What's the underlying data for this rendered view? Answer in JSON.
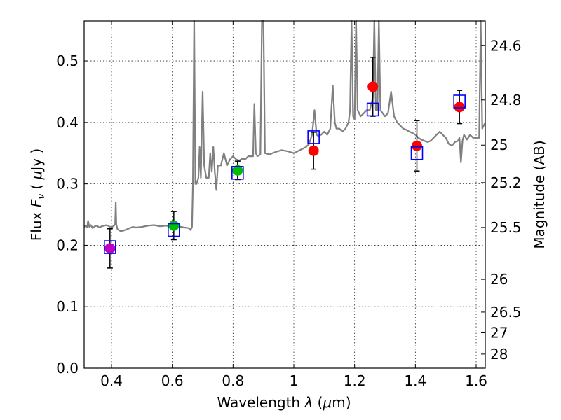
{
  "chart_data": {
    "type": "scatter",
    "title": "",
    "xlabel": {
      "prefix": "Wavelength ",
      "symbol": "λ",
      "open": " (",
      "mu": "μ",
      "unit": "m)"
    },
    "ylabel": {
      "prefix": "Flux ",
      "symbol": "F",
      "sub": "ν",
      "open": " ( ",
      "mu": "μ",
      "unit": "Jy )"
    },
    "y2label": "Magnitude (AB)",
    "xlim": [
      0.31,
      1.63
    ],
    "ylim": [
      0.0,
      0.565
    ],
    "grid": true,
    "x_ticks": [
      0.4,
      0.6,
      0.8,
      1.0,
      1.2,
      1.4,
      1.6
    ],
    "x_tick_labels": [
      "0.4",
      "0.6",
      "0.8",
      "1",
      "1.2",
      "1.4",
      "1.6"
    ],
    "y_ticks": [
      0.0,
      0.1,
      0.2,
      0.3,
      0.4,
      0.5
    ],
    "y_tick_labels": [
      "0.0",
      "0.1",
      "0.2",
      "0.3",
      "0.4",
      "0.5"
    ],
    "y2_ticks": [
      24.6,
      24.8,
      25.0,
      25.2,
      25.5,
      26.0,
      26.5,
      27.0,
      28.0
    ],
    "y2_tick_labels": [
      "24.6",
      "24.8",
      "25",
      "25.2",
      "25.5",
      "26",
      "26.5",
      "27",
      "28"
    ],
    "model_spectrum": {
      "name": "model SED",
      "color": "#808080",
      "points": [
        [
          0.31,
          0.23
        ],
        [
          0.315,
          0.232
        ],
        [
          0.32,
          0.229
        ],
        [
          0.323,
          0.24
        ],
        [
          0.327,
          0.23
        ],
        [
          0.332,
          0.233
        ],
        [
          0.338,
          0.228
        ],
        [
          0.345,
          0.231
        ],
        [
          0.352,
          0.232
        ],
        [
          0.36,
          0.229
        ],
        [
          0.368,
          0.231
        ],
        [
          0.376,
          0.232
        ],
        [
          0.384,
          0.233
        ],
        [
          0.392,
          0.231
        ],
        [
          0.4,
          0.229
        ],
        [
          0.408,
          0.232
        ],
        [
          0.412,
          0.234
        ],
        [
          0.414,
          0.27
        ],
        [
          0.416,
          0.234
        ],
        [
          0.42,
          0.226
        ],
        [
          0.43,
          0.223
        ],
        [
          0.44,
          0.224
        ],
        [
          0.45,
          0.226
        ],
        [
          0.46,
          0.228
        ],
        [
          0.47,
          0.23
        ],
        [
          0.48,
          0.229
        ],
        [
          0.5,
          0.23
        ],
        [
          0.52,
          0.232
        ],
        [
          0.54,
          0.233
        ],
        [
          0.56,
          0.231
        ],
        [
          0.58,
          0.232
        ],
        [
          0.6,
          0.23
        ],
        [
          0.62,
          0.231
        ],
        [
          0.64,
          0.229
        ],
        [
          0.655,
          0.228
        ],
        [
          0.66,
          0.225
        ],
        [
          0.665,
          0.23
        ],
        [
          0.668,
          0.3
        ],
        [
          0.672,
          0.565
        ],
        [
          0.676,
          0.3
        ],
        [
          0.68,
          0.3
        ],
        [
          0.686,
          0.31
        ],
        [
          0.69,
          0.36
        ],
        [
          0.694,
          0.31
        ],
        [
          0.7,
          0.45
        ],
        [
          0.705,
          0.33
        ],
        [
          0.712,
          0.31
        ],
        [
          0.72,
          0.31
        ],
        [
          0.725,
          0.35
        ],
        [
          0.73,
          0.32
        ],
        [
          0.735,
          0.36
        ],
        [
          0.74,
          0.32
        ],
        [
          0.745,
          0.29
        ],
        [
          0.75,
          0.33
        ],
        [
          0.76,
          0.33
        ],
        [
          0.77,
          0.35
        ],
        [
          0.78,
          0.33
        ],
        [
          0.79,
          0.34
        ],
        [
          0.8,
          0.345
        ],
        [
          0.81,
          0.34
        ],
        [
          0.82,
          0.338
        ],
        [
          0.83,
          0.341
        ],
        [
          0.84,
          0.34
        ],
        [
          0.85,
          0.345
        ],
        [
          0.86,
          0.345
        ],
        [
          0.866,
          0.345
        ],
        [
          0.87,
          0.43
        ],
        [
          0.875,
          0.35
        ],
        [
          0.88,
          0.345
        ],
        [
          0.89,
          0.348
        ],
        [
          0.895,
          0.565
        ],
        [
          0.9,
          0.565
        ],
        [
          0.905,
          0.35
        ],
        [
          0.92,
          0.348
        ],
        [
          0.94,
          0.352
        ],
        [
          0.96,
          0.355
        ],
        [
          0.98,
          0.353
        ],
        [
          1.0,
          0.35
        ],
        [
          1.02,
          0.355
        ],
        [
          1.04,
          0.36
        ],
        [
          1.05,
          0.365
        ],
        [
          1.06,
          0.38
        ],
        [
          1.068,
          0.42
        ],
        [
          1.075,
          0.38
        ],
        [
          1.08,
          0.378
        ],
        [
          1.09,
          0.38
        ],
        [
          1.1,
          0.385
        ],
        [
          1.11,
          0.38
        ],
        [
          1.12,
          0.39
        ],
        [
          1.128,
          0.46
        ],
        [
          1.135,
          0.4
        ],
        [
          1.14,
          0.39
        ],
        [
          1.15,
          0.39
        ],
        [
          1.16,
          0.385
        ],
        [
          1.17,
          0.39
        ],
        [
          1.18,
          0.4
        ],
        [
          1.185,
          0.42
        ],
        [
          1.19,
          0.565
        ],
        [
          1.195,
          0.41
        ],
        [
          1.2,
          0.405
        ],
        [
          1.205,
          0.565
        ],
        [
          1.21,
          0.42
        ],
        [
          1.22,
          0.41
        ],
        [
          1.23,
          0.415
        ],
        [
          1.24,
          0.42
        ],
        [
          1.25,
          0.42
        ],
        [
          1.26,
          0.44
        ],
        [
          1.265,
          0.565
        ],
        [
          1.27,
          0.42
        ],
        [
          1.275,
          0.42
        ],
        [
          1.28,
          0.565
        ],
        [
          1.285,
          0.42
        ],
        [
          1.3,
          0.41
        ],
        [
          1.31,
          0.415
        ],
        [
          1.32,
          0.45
        ],
        [
          1.33,
          0.41
        ],
        [
          1.34,
          0.4
        ],
        [
          1.35,
          0.395
        ],
        [
          1.36,
          0.39
        ],
        [
          1.37,
          0.388
        ],
        [
          1.38,
          0.385
        ],
        [
          1.39,
          0.383
        ],
        [
          1.4,
          0.38
        ],
        [
          1.41,
          0.375
        ],
        [
          1.42,
          0.372
        ],
        [
          1.43,
          0.37
        ],
        [
          1.44,
          0.368
        ],
        [
          1.45,
          0.37
        ],
        [
          1.46,
          0.375
        ],
        [
          1.47,
          0.38
        ],
        [
          1.48,
          0.385
        ],
        [
          1.49,
          0.38
        ],
        [
          1.5,
          0.375
        ],
        [
          1.51,
          0.365
        ],
        [
          1.52,
          0.362
        ],
        [
          1.53,
          0.368
        ],
        [
          1.54,
          0.37
        ],
        [
          1.545,
          0.375
        ],
        [
          1.55,
          0.335
        ],
        [
          1.555,
          0.37
        ],
        [
          1.56,
          0.38
        ],
        [
          1.57,
          0.372
        ],
        [
          1.58,
          0.38
        ],
        [
          1.59,
          0.375
        ],
        [
          1.6,
          0.375
        ],
        [
          1.61,
          0.375
        ],
        [
          1.615,
          0.565
        ],
        [
          1.62,
          0.39
        ],
        [
          1.63,
          0.4
        ]
      ]
    },
    "series": [
      {
        "name": "observed photometry",
        "color_by_point": true,
        "points": [
          {
            "x": 0.395,
            "y": 0.195,
            "err": 0.032,
            "color": "#bf00bf"
          },
          {
            "x": 0.605,
            "y": 0.232,
            "err": 0.023,
            "color": "#00bf00"
          },
          {
            "x": 0.815,
            "y": 0.322,
            "err": 0.015,
            "color": "#00bf00"
          },
          {
            "x": 1.065,
            "y": 0.354,
            "err": 0.03,
            "color": "#ff0000"
          },
          {
            "x": 1.26,
            "y": 0.458,
            "err": 0.048,
            "color": "#ff0000"
          },
          {
            "x": 1.405,
            "y": 0.362,
            "err": 0.041,
            "color": "#ff0000"
          },
          {
            "x": 1.545,
            "y": 0.425,
            "err": 0.027,
            "color": "#ff0000"
          }
        ]
      },
      {
        "name": "model photometry",
        "color": "#0000ff",
        "marker": "open-square",
        "points": [
          {
            "x": 0.395,
            "y": 0.197
          },
          {
            "x": 0.605,
            "y": 0.225
          },
          {
            "x": 0.815,
            "y": 0.318
          },
          {
            "x": 1.065,
            "y": 0.376
          },
          {
            "x": 1.26,
            "y": 0.421
          },
          {
            "x": 1.405,
            "y": 0.35
          },
          {
            "x": 1.545,
            "y": 0.434
          }
        ]
      }
    ]
  }
}
